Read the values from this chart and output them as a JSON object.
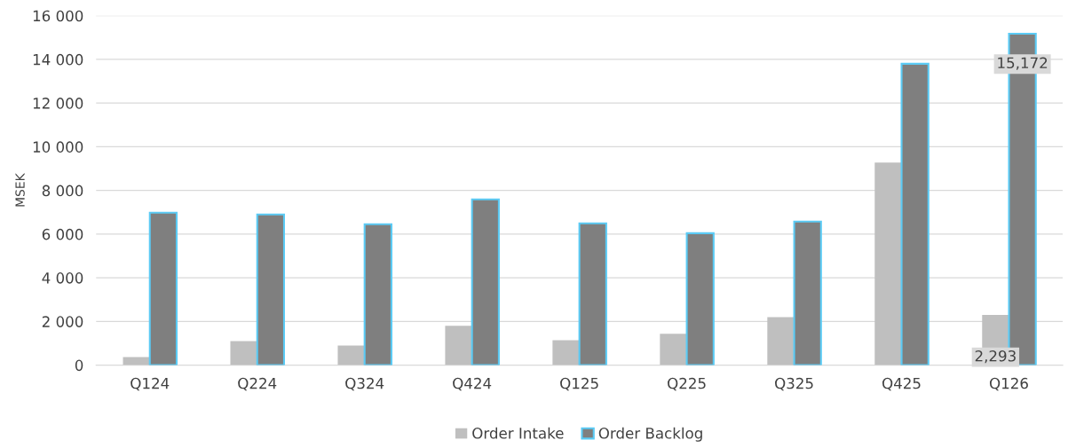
{
  "chart_data": {
    "type": "bar",
    "ylabel": "MSEK",
    "categories": [
      "Q124",
      "Q224",
      "Q324",
      "Q424",
      "Q125",
      "Q225",
      "Q325",
      "Q425",
      "Q126"
    ],
    "series": [
      {
        "name": "Order Intake",
        "color": "#bfbfbf",
        "values": [
          370,
          1100,
          900,
          1800,
          1140,
          1430,
          2200,
          9270,
          2293
        ],
        "value_labels": [
          null,
          null,
          null,
          null,
          null,
          null,
          null,
          null,
          "2,293"
        ]
      },
      {
        "name": "Order Backlog",
        "color": "#7f7f7f",
        "values": [
          6980,
          6900,
          6450,
          7590,
          6490,
          6040,
          6570,
          13800,
          15172
        ],
        "value_labels": [
          null,
          null,
          null,
          null,
          null,
          null,
          null,
          null,
          "15,172"
        ]
      }
    ],
    "ylim": [
      0,
      16000
    ],
    "yticks": [
      0,
      {
        "value": 2000,
        "label": "2 000"
      },
      {
        "value": 4000,
        "label": "4 000"
      },
      {
        "value": 6000,
        "label": "6 000"
      },
      {
        "value": 8000,
        "label": "8 000"
      },
      {
        "value": 10000,
        "label": "10 000"
      },
      {
        "value": 12000,
        "label": "12 000"
      },
      {
        "value": 14000,
        "label": "14 000"
      },
      {
        "value": 16000,
        "label": "16 000"
      }
    ],
    "grid": "y",
    "legend": "bottom"
  }
}
